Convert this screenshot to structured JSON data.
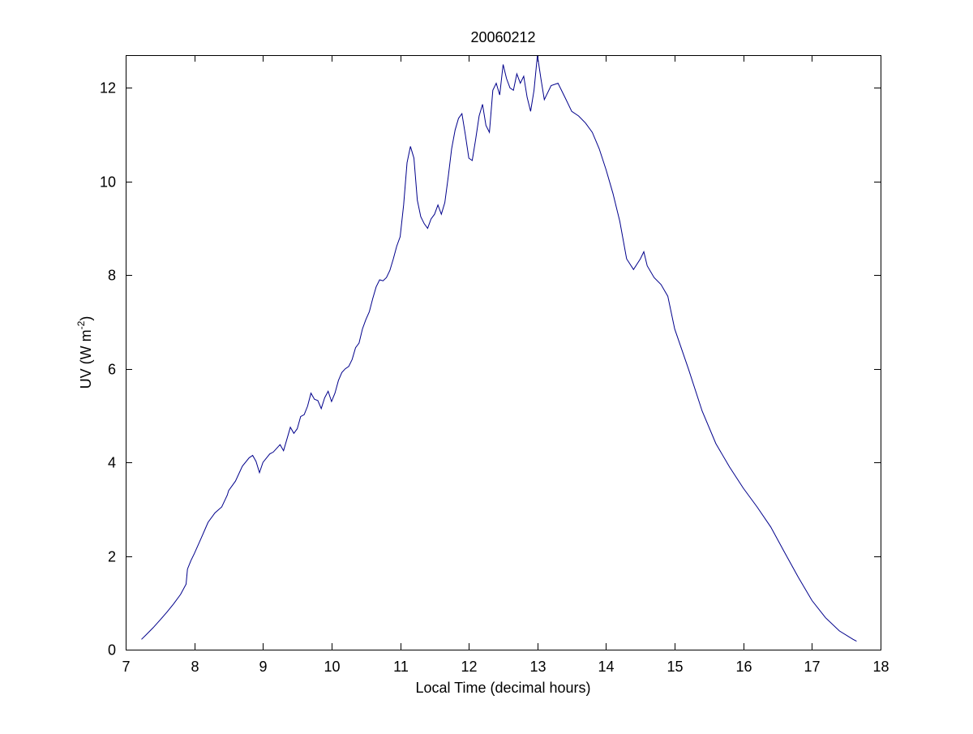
{
  "chart_data": {
    "type": "line",
    "title": "20060212",
    "xlabel": "Local Time (decimal hours)",
    "ylabel": {
      "prefix": "UV (W m",
      "superscript": "-2",
      "suffix": ")"
    },
    "xlim": [
      7,
      18
    ],
    "ylim": [
      0,
      12.7
    ],
    "xticks": [
      7,
      8,
      9,
      10,
      11,
      12,
      13,
      14,
      15,
      16,
      17,
      18
    ],
    "yticks": [
      0,
      2,
      4,
      6,
      8,
      10,
      12
    ],
    "grid": false,
    "line_color": "#00008b",
    "series": [
      {
        "x": [
          7.23,
          7.3,
          7.4,
          7.5,
          7.6,
          7.7,
          7.8,
          7.88,
          7.9,
          7.95,
          8.0,
          8.1,
          8.2,
          8.3,
          8.4,
          8.48,
          8.5,
          8.6,
          8.7,
          8.8,
          8.85,
          8.9,
          8.95,
          9.0,
          9.1,
          9.15,
          9.2,
          9.25,
          9.3,
          9.35,
          9.4,
          9.45,
          9.5,
          9.55,
          9.6,
          9.65,
          9.7,
          9.75,
          9.8,
          9.85,
          9.9,
          9.95,
          10.0,
          10.05,
          10.1,
          10.15,
          10.2,
          10.25,
          10.3,
          10.35,
          10.4,
          10.45,
          10.5,
          10.55,
          10.6,
          10.65,
          10.7,
          10.75,
          10.8,
          10.85,
          10.9,
          10.95,
          11.0,
          11.05,
          11.1,
          11.15,
          11.2,
          11.25,
          11.3,
          11.35,
          11.4,
          11.45,
          11.5,
          11.55,
          11.6,
          11.65,
          11.7,
          11.75,
          11.8,
          11.85,
          11.9,
          11.95,
          12.0,
          12.05,
          12.1,
          12.15,
          12.2,
          12.25,
          12.3,
          12.35,
          12.4,
          12.45,
          12.5,
          12.55,
          12.6,
          12.65,
          12.7,
          12.75,
          12.8,
          12.85,
          12.9,
          12.95,
          13.0,
          13.05,
          13.1,
          13.2,
          13.3,
          13.4,
          13.5,
          13.6,
          13.7,
          13.8,
          13.9,
          14.0,
          14.1,
          14.2,
          14.3,
          14.4,
          14.5,
          14.55,
          14.6,
          14.7,
          14.8,
          14.9,
          15.0,
          15.2,
          15.4,
          15.6,
          15.8,
          16.0,
          16.2,
          16.4,
          16.6,
          16.8,
          17.0,
          17.2,
          17.4,
          17.6,
          17.65
        ],
        "y": [
          0.22,
          0.32,
          0.47,
          0.63,
          0.8,
          0.98,
          1.18,
          1.4,
          1.72,
          1.9,
          2.05,
          2.38,
          2.72,
          2.92,
          3.05,
          3.3,
          3.4,
          3.6,
          3.92,
          4.1,
          4.15,
          4.02,
          3.78,
          4.0,
          4.18,
          4.22,
          4.3,
          4.38,
          4.25,
          4.5,
          4.75,
          4.62,
          4.72,
          4.98,
          5.02,
          5.2,
          5.48,
          5.35,
          5.32,
          5.15,
          5.38,
          5.52,
          5.3,
          5.48,
          5.75,
          5.92,
          6.0,
          6.05,
          6.2,
          6.45,
          6.55,
          6.85,
          7.05,
          7.22,
          7.5,
          7.75,
          7.9,
          7.88,
          7.95,
          8.1,
          8.35,
          8.62,
          8.82,
          9.5,
          10.4,
          10.75,
          10.5,
          9.6,
          9.25,
          9.1,
          9.0,
          9.2,
          9.3,
          9.5,
          9.3,
          9.55,
          10.1,
          10.7,
          11.1,
          11.35,
          11.45,
          11.0,
          10.5,
          10.45,
          10.9,
          11.4,
          11.65,
          11.2,
          11.05,
          11.95,
          12.1,
          11.85,
          12.5,
          12.2,
          12.0,
          11.95,
          12.3,
          12.1,
          12.25,
          11.8,
          11.5,
          11.95,
          12.7,
          12.2,
          11.75,
          12.05,
          12.1,
          11.8,
          11.5,
          11.4,
          11.25,
          11.05,
          10.7,
          10.25,
          9.75,
          9.15,
          8.35,
          8.12,
          8.35,
          8.5,
          8.2,
          7.95,
          7.8,
          7.55,
          6.85,
          6.0,
          5.1,
          4.4,
          3.9,
          3.45,
          3.05,
          2.62,
          2.08,
          1.55,
          1.05,
          0.68,
          0.4,
          0.22,
          0.18
        ]
      }
    ]
  }
}
